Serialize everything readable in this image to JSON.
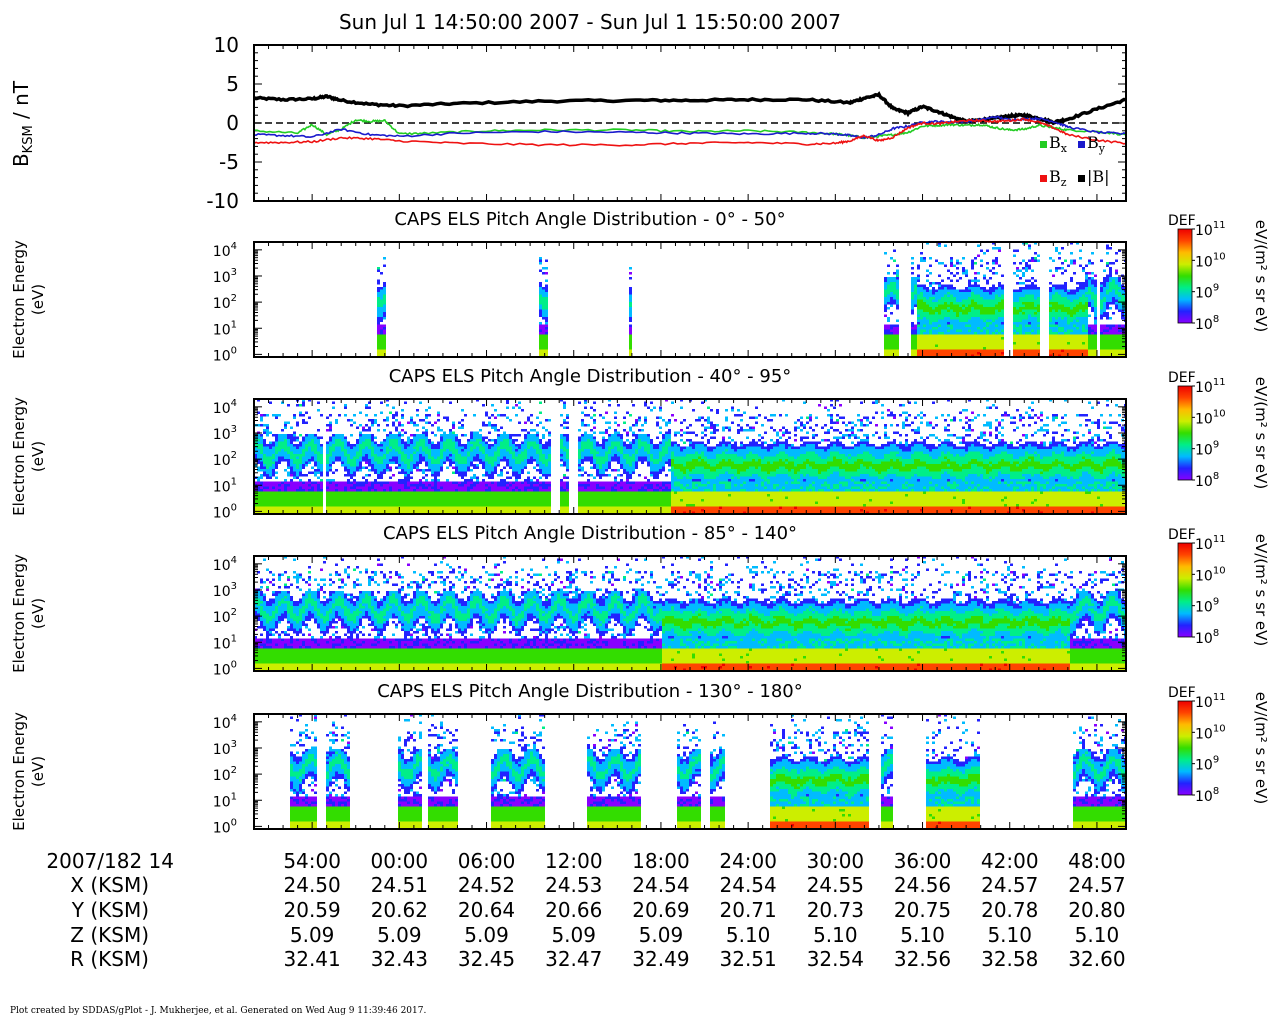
{
  "title": "Sun Jul 1 14:50:00 2007 - Sun Jul 1 15:50:00 2007",
  "footer": "Plot created by SDDAS/gPlot - J. Mukherjee, et al.  Generated on Wed Aug 9 11:39:46 2017.",
  "colors": {
    "bx": "#22cc22",
    "by": "#1a1acc",
    "bz": "#ee1111",
    "bmag": "#000000",
    "colorbar": [
      "#8800ff",
      "#2222ff",
      "#00bbff",
      "#00ee88",
      "#33dd00",
      "#ccee00",
      "#ffbb00",
      "#ff4400",
      "#ee0000"
    ]
  },
  "chart_data": [
    {
      "type": "line",
      "panel": "magnetic-field",
      "ylabel": "B_KSM / nT",
      "ylim": [
        -10,
        10
      ],
      "yticks": [
        "10",
        "5",
        "0",
        "-5",
        "-10"
      ],
      "xlim_minutes": [
        50,
        110
      ],
      "reference_line": 0,
      "legend": [
        "Bx",
        "By",
        "Bz",
        "|B|"
      ],
      "legend_placement": "bottom-right",
      "series": [
        {
          "name": "|B|",
          "x": [
            50,
            52,
            54,
            55,
            56,
            58,
            60,
            64,
            70,
            76,
            80,
            84,
            88,
            91,
            92,
            93,
            94,
            95,
            96,
            97,
            98,
            99,
            100,
            101,
            102,
            103,
            104,
            105,
            106,
            108,
            110
          ],
          "y": [
            3.2,
            3.0,
            3.1,
            3.4,
            2.9,
            2.4,
            2.2,
            2.5,
            2.8,
            2.9,
            2.9,
            3.0,
            3.0,
            2.6,
            3.2,
            3.6,
            1.8,
            1.3,
            2.1,
            1.5,
            0.8,
            0.2,
            0.4,
            0.6,
            0.9,
            1.0,
            0.6,
            0.1,
            0.5,
            1.8,
            3.0
          ]
        },
        {
          "name": "Bx",
          "x": [
            50,
            53,
            54,
            55,
            56,
            57,
            58,
            59,
            60,
            62,
            66,
            70,
            76,
            80,
            84,
            88,
            90,
            91,
            92,
            93,
            94,
            95,
            96,
            97,
            98,
            99,
            100,
            101,
            102,
            103,
            104,
            105,
            106,
            108,
            110
          ],
          "y": [
            -1.0,
            -1.3,
            -0.2,
            -1.5,
            -0.8,
            0.4,
            0.2,
            0.3,
            -1.4,
            -1.3,
            -1.0,
            -0.9,
            -0.9,
            -1.1,
            -1.0,
            -1.2,
            -1.4,
            -1.6,
            -1.9,
            -1.7,
            -1.5,
            -1.2,
            -0.4,
            -0.3,
            -0.2,
            -0.3,
            -0.2,
            -0.6,
            -0.9,
            -0.8,
            -0.3,
            -0.6,
            -0.9,
            -1.1,
            -1.5
          ]
        },
        {
          "name": "By",
          "x": [
            50,
            52,
            54,
            56,
            58,
            60,
            64,
            70,
            76,
            80,
            84,
            88,
            90,
            91,
            92,
            93,
            94,
            95,
            96,
            97,
            98,
            99,
            100,
            101,
            102,
            103,
            104,
            105,
            106,
            108,
            110
          ],
          "y": [
            -1.5,
            -1.6,
            -1.8,
            -0.8,
            -1.5,
            -1.7,
            -1.3,
            -1.1,
            -1.2,
            -1.3,
            -1.4,
            -1.3,
            -1.4,
            -1.6,
            -1.9,
            -1.5,
            -0.7,
            -0.4,
            0.1,
            0.2,
            0.1,
            0.2,
            0.4,
            0.8,
            0.4,
            0.5,
            0.6,
            0.2,
            -0.5,
            -1.2,
            -1.4
          ]
        },
        {
          "name": "Bz",
          "x": [
            50,
            52,
            54,
            56,
            58,
            60,
            64,
            70,
            76,
            80,
            84,
            88,
            90,
            91,
            92,
            93,
            94,
            95,
            96,
            97,
            98,
            99,
            100,
            101,
            102,
            103,
            104,
            105,
            106,
            108,
            110
          ],
          "y": [
            -2.5,
            -2.5,
            -2.4,
            -1.9,
            -2.0,
            -2.3,
            -2.6,
            -2.8,
            -2.8,
            -2.6,
            -2.5,
            -2.7,
            -2.6,
            -2.3,
            -1.6,
            -2.3,
            -1.8,
            -0.6,
            0.0,
            -0.1,
            0.1,
            0.3,
            0.3,
            0.2,
            0.3,
            0.5,
            0.1,
            -0.6,
            -1.5,
            -2.2,
            -2.6
          ]
        }
      ]
    },
    {
      "type": "heatmap",
      "title": "CAPS ELS Pitch Angle Distribution - 0° - 50°",
      "ylabel": "Electron Energy (eV)",
      "ylim_log10": [
        -0.1,
        4.3
      ],
      "colorbar_label": "eV/(m² s sr eV)",
      "colorbar_title": "DEF",
      "colorbar_range_log10": [
        8,
        11
      ],
      "data_intervals": [
        [
          58.4,
          59.0
        ],
        [
          69.6,
          70.2
        ],
        [
          75.6,
          75.9
        ],
        [
          93.2,
          94.2
        ],
        [
          95.2,
          110.0
        ]
      ],
      "gaps": [
        [
          101.6,
          102.1
        ],
        [
          104.0,
          104.5
        ],
        [
          107.8,
          108.2
        ]
      ],
      "gyration_band_intervals": [
        [
          95.5,
          101.5
        ],
        [
          102.2,
          103.9
        ],
        [
          104.6,
          107.2
        ]
      ]
    },
    {
      "type": "heatmap",
      "title": "CAPS ELS Pitch Angle Distribution - 40° - 95°",
      "ylabel": "Electron Energy (eV)",
      "ylim_log10": [
        -0.1,
        4.3
      ],
      "colorbar_label": "eV/(m² s sr eV)",
      "colorbar_title": "DEF",
      "colorbar_range_log10": [
        8,
        11
      ],
      "data_intervals": [
        [
          50,
          110
        ]
      ],
      "gaps": [
        [
          54.7,
          54.95
        ],
        [
          70.4,
          70.9
        ],
        [
          71.5,
          72.2
        ]
      ],
      "gyration_band_intervals": [
        [
          78.5,
          110
        ]
      ]
    },
    {
      "type": "heatmap",
      "title": "CAPS ELS Pitch Angle Distribution - 85° - 140°",
      "ylabel": "Electron Energy (eV)",
      "ylim_log10": [
        -0.1,
        4.3
      ],
      "colorbar_label": "eV/(m² s sr eV)",
      "colorbar_title": "DEF",
      "colorbar_range_log10": [
        8,
        11
      ],
      "data_intervals": [
        [
          50,
          110
        ]
      ],
      "gaps": [],
      "gyration_band_intervals": [
        [
          78.0,
          106.0
        ]
      ]
    },
    {
      "type": "heatmap",
      "title": "CAPS ELS Pitch Angle Distribution - 130° - 180°",
      "ylabel": "Electron Energy (eV)",
      "ylim_log10": [
        -0.1,
        4.3
      ],
      "colorbar_label": "eV/(m² s sr eV)",
      "colorbar_title": "DEF",
      "colorbar_range_log10": [
        8,
        11
      ],
      "data_intervals": [
        [
          52.3,
          54.2
        ],
        [
          54.8,
          56.4
        ],
        [
          59.8,
          61.4
        ],
        [
          61.8,
          63.9
        ],
        [
          66.3,
          70.0
        ],
        [
          72.9,
          76.6
        ],
        [
          79.1,
          80.7
        ],
        [
          81.3,
          82.4
        ],
        [
          85.4,
          92.2
        ],
        [
          93.0,
          93.9
        ],
        [
          96.1,
          99.9
        ],
        [
          106.2,
          110.0
        ]
      ],
      "gaps": [],
      "gyration_band_intervals": [
        [
          85.4,
          92.2
        ],
        [
          96.1,
          99.9
        ]
      ]
    }
  ],
  "energy_ticks": [
    "10⁰",
    "10¹",
    "10²",
    "10³",
    "10⁴"
  ],
  "colorbar_ticks": [
    "10⁸",
    "10⁹",
    "10¹⁰",
    "10¹¹"
  ],
  "time_axis": {
    "header": "2007/182 14",
    "labels": [
      "54:00",
      "00:00",
      "06:00",
      "12:00",
      "18:00",
      "24:00",
      "30:00",
      "36:00",
      "42:00",
      "48:00"
    ],
    "minutes": [
      54,
      60,
      66,
      72,
      78,
      84,
      90,
      96,
      102,
      108
    ]
  },
  "ephemeris": [
    {
      "label": "X (KSM)",
      "values": [
        "24.50",
        "24.51",
        "24.52",
        "24.53",
        "24.54",
        "24.54",
        "24.55",
        "24.56",
        "24.57",
        "24.57"
      ]
    },
    {
      "label": "Y (KSM)",
      "values": [
        "20.59",
        "20.62",
        "20.64",
        "20.66",
        "20.69",
        "20.71",
        "20.73",
        "20.75",
        "20.78",
        "20.80"
      ]
    },
    {
      "label": "Z (KSM)",
      "values": [
        "5.09",
        "5.09",
        "5.09",
        "5.09",
        "5.09",
        "5.10",
        "5.10",
        "5.10",
        "5.10",
        "5.10"
      ]
    },
    {
      "label": "R (KSM)",
      "values": [
        "32.41",
        "32.43",
        "32.45",
        "32.47",
        "32.49",
        "32.51",
        "32.54",
        "32.56",
        "32.58",
        "32.60"
      ]
    }
  ]
}
